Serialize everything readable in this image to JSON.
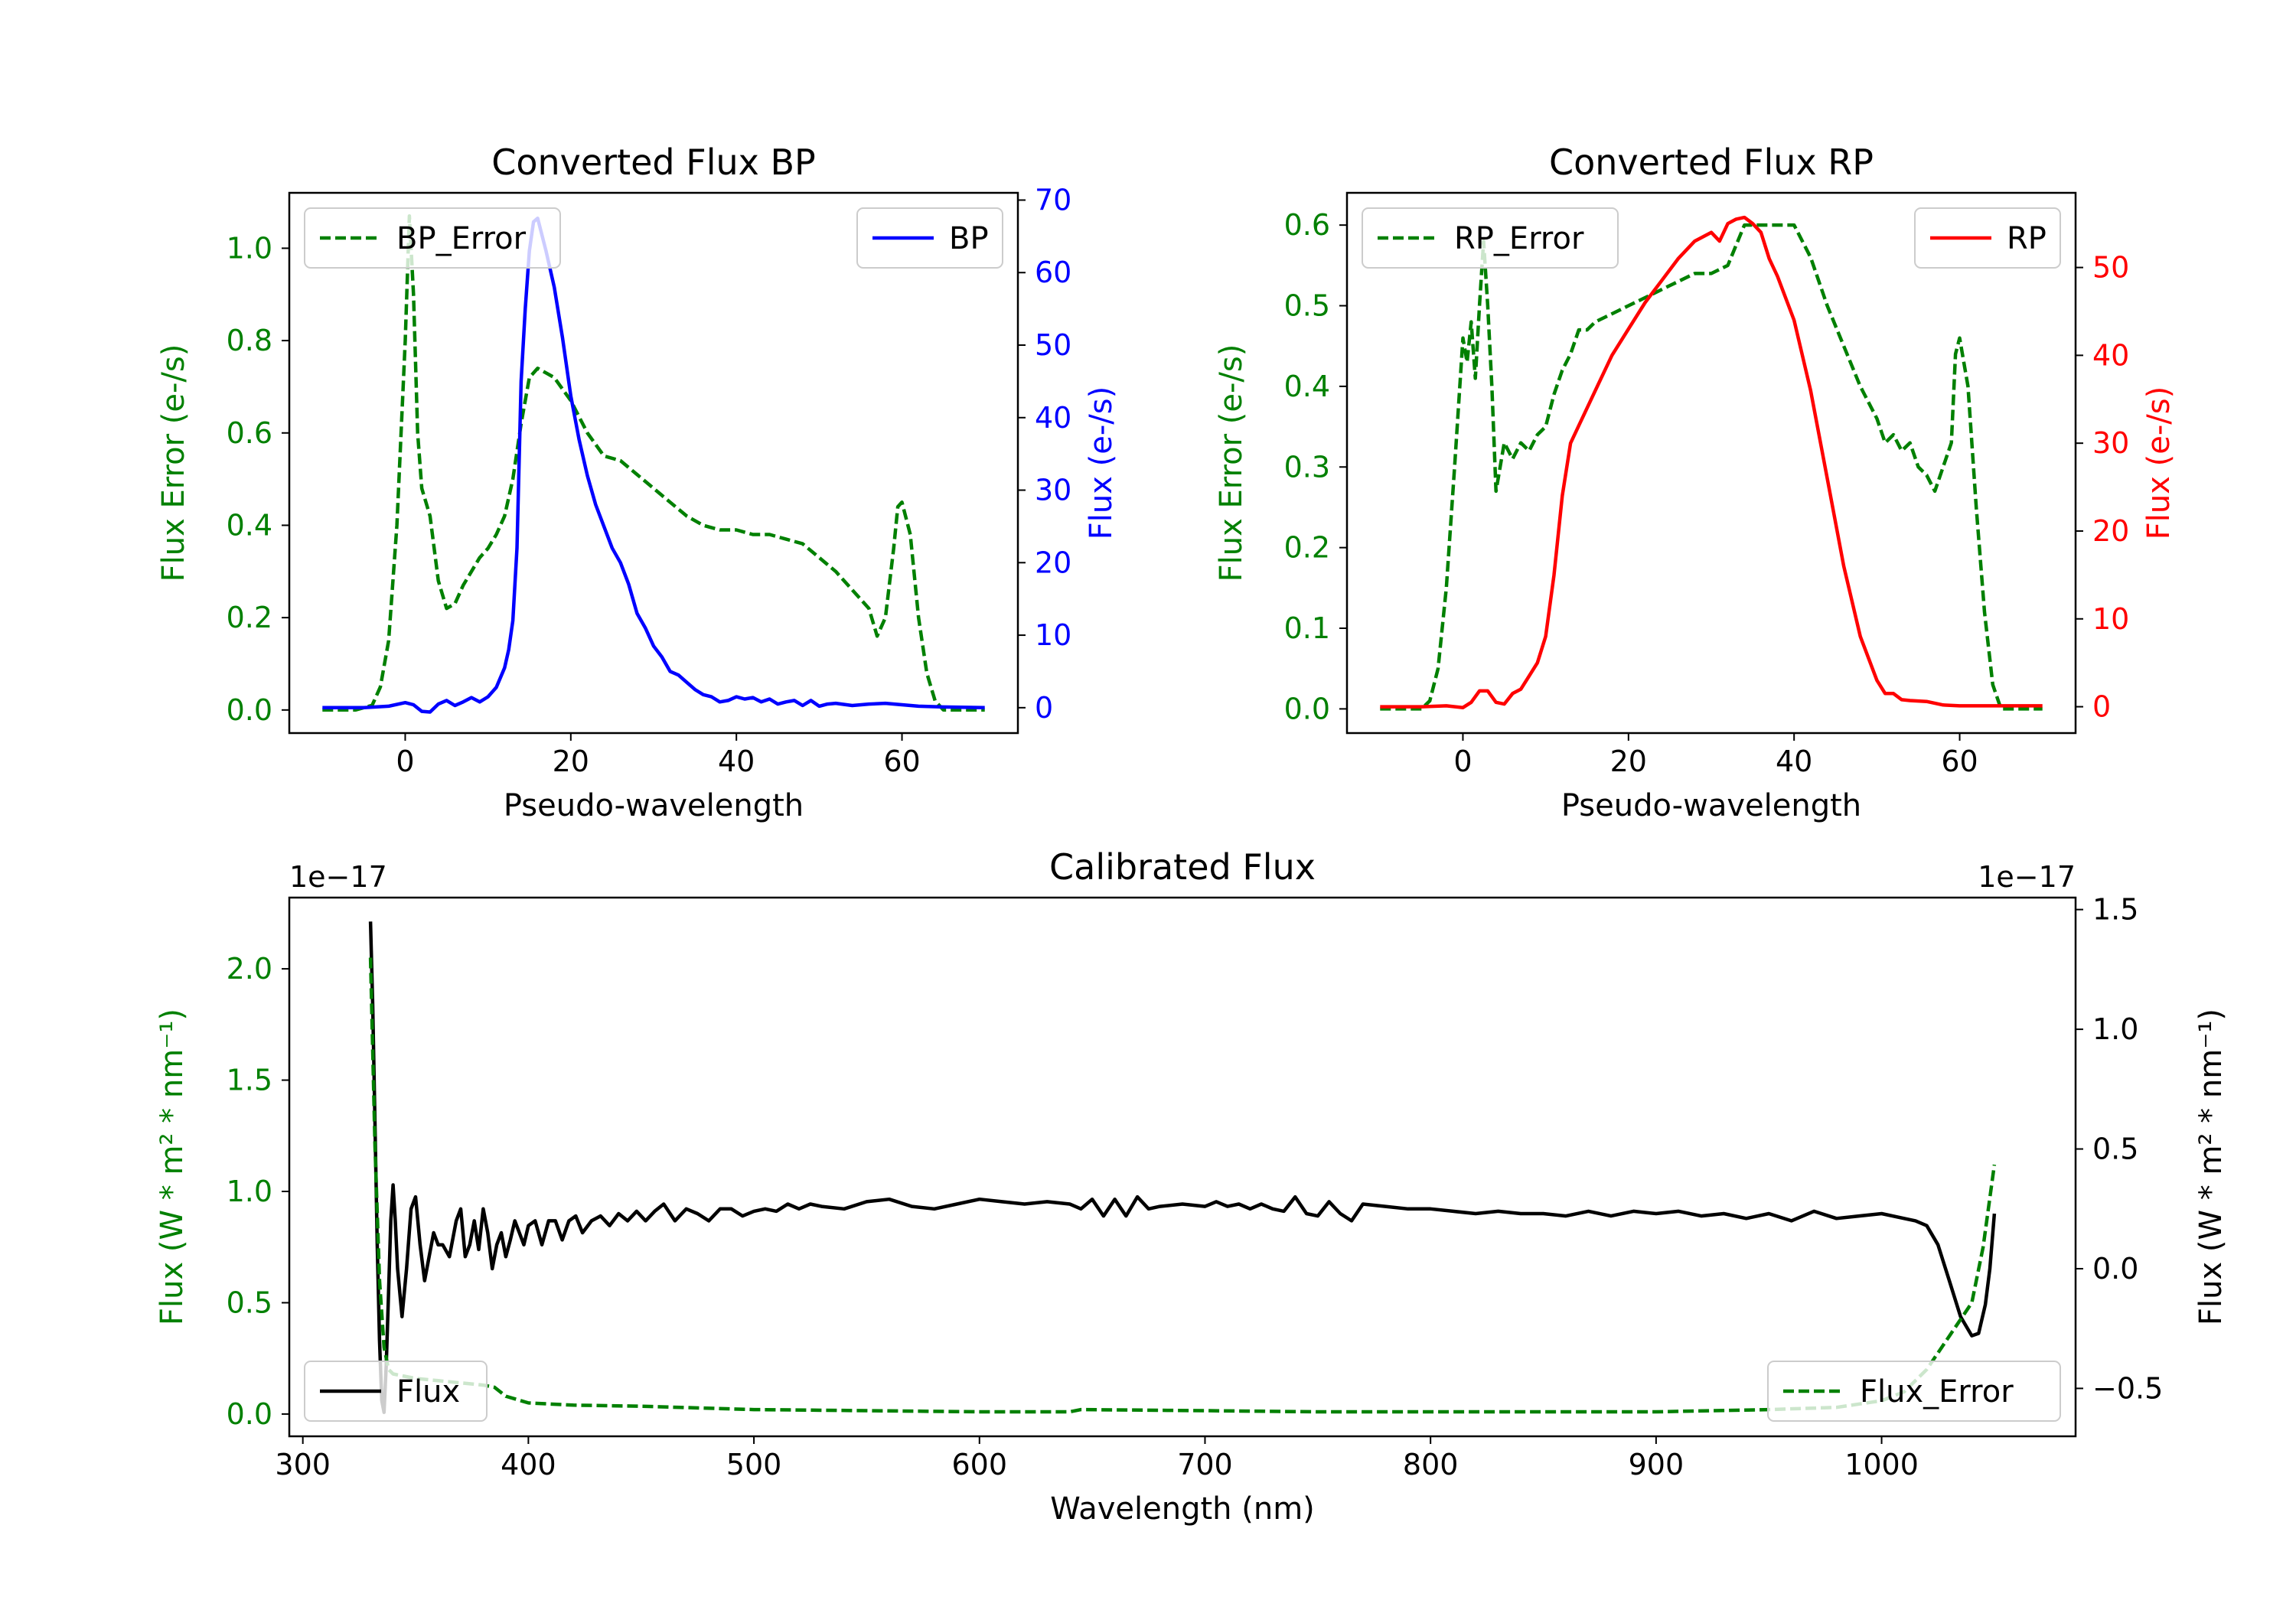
{
  "chart_data": [
    {
      "id": "bp",
      "type": "line",
      "title": "Converted Flux BP",
      "xlabel": "Pseudo-wavelength",
      "xlim": [
        -14,
        74
      ],
      "xticks": [
        0,
        20,
        40,
        60
      ],
      "left_axis": {
        "label": "Flux Error (e-/s)",
        "color": "#008000",
        "ylim": [
          -0.05,
          1.12
        ],
        "ticks": [
          0.0,
          0.2,
          0.4,
          0.6,
          0.8,
          1.0
        ],
        "tick_labels": [
          "0.0",
          "0.2",
          "0.4",
          "0.6",
          "0.8",
          "1.0"
        ]
      },
      "right_axis": {
        "label": "Flux (e-/s)",
        "color": "#0000ff",
        "ylim": [
          -3.5,
          71
        ],
        "ticks": [
          0,
          10,
          20,
          30,
          40,
          50,
          60,
          70
        ],
        "tick_labels": [
          "0",
          "10",
          "20",
          "30",
          "40",
          "50",
          "60",
          "70"
        ]
      },
      "series": [
        {
          "name": "BP_Error",
          "axis": "left",
          "style": "dashed",
          "color": "#008000",
          "x": [
            -10,
            -6,
            -4,
            -3,
            -2,
            -1,
            0,
            0.5,
            1,
            1.5,
            2,
            3,
            4,
            5,
            6,
            7,
            8,
            9,
            10,
            11,
            12,
            13,
            14,
            15,
            16,
            17,
            18,
            20,
            22,
            24,
            26,
            28,
            30,
            32,
            34,
            36,
            38,
            40,
            42,
            44,
            46,
            48,
            50,
            52,
            54,
            55,
            56,
            57,
            58,
            59,
            59.5,
            60,
            61,
            62,
            63,
            64,
            65,
            66,
            70
          ],
          "y": [
            0.0,
            0.0,
            0.01,
            0.05,
            0.15,
            0.4,
            0.8,
            1.07,
            0.9,
            0.6,
            0.48,
            0.42,
            0.28,
            0.22,
            0.23,
            0.27,
            0.3,
            0.33,
            0.35,
            0.38,
            0.42,
            0.5,
            0.62,
            0.72,
            0.74,
            0.73,
            0.72,
            0.67,
            0.6,
            0.55,
            0.54,
            0.51,
            0.48,
            0.45,
            0.42,
            0.4,
            0.39,
            0.39,
            0.38,
            0.38,
            0.37,
            0.36,
            0.33,
            0.3,
            0.26,
            0.24,
            0.22,
            0.16,
            0.2,
            0.35,
            0.44,
            0.45,
            0.38,
            0.2,
            0.08,
            0.02,
            0.0,
            0.0,
            0.0
          ]
        },
        {
          "name": "BP",
          "axis": "right",
          "style": "solid",
          "color": "#0000ff",
          "x": [
            -10,
            -5,
            -2,
            0,
            1,
            2,
            3,
            4,
            5,
            6,
            7,
            8,
            9,
            10,
            11,
            12,
            12.5,
            13,
            13.5,
            14,
            14.5,
            15,
            15.5,
            16,
            17,
            18,
            19,
            20,
            21,
            22,
            23,
            24,
            25,
            26,
            27,
            28,
            29,
            30,
            31,
            32,
            33,
            34,
            35,
            36,
            37,
            38,
            39,
            40,
            41,
            42,
            43,
            44,
            45,
            46,
            47,
            48,
            49,
            50,
            51,
            52,
            54,
            56,
            58,
            60,
            62,
            65,
            70
          ],
          "y": [
            0,
            0,
            0.2,
            0.7,
            0.4,
            -0.5,
            -0.6,
            0.5,
            1.0,
            0.3,
            0.8,
            1.4,
            0.8,
            1.5,
            2.8,
            5.5,
            8,
            12,
            22,
            45,
            55,
            63,
            67,
            67.5,
            63,
            58,
            51,
            43,
            37,
            32,
            28,
            25,
            22,
            20,
            17,
            13,
            11,
            8.5,
            7,
            5,
            4.5,
            3.5,
            2.5,
            1.8,
            1.5,
            0.8,
            1.0,
            1.5,
            1.2,
            1.4,
            0.8,
            1.2,
            0.5,
            0.8,
            1.0,
            0.3,
            1.0,
            0.2,
            0.5,
            0.6,
            0.3,
            0.5,
            0.6,
            0.4,
            0.2,
            0.1,
            0.0
          ]
        }
      ],
      "legends": [
        {
          "entries": [
            "BP_Error"
          ],
          "position": "upper left"
        },
        {
          "entries": [
            "BP"
          ],
          "position": "upper right"
        }
      ]
    },
    {
      "id": "rp",
      "type": "line",
      "title": "Converted Flux RP",
      "xlabel": "Pseudo-wavelength",
      "xlim": [
        -14,
        74
      ],
      "xticks": [
        0,
        20,
        40,
        60
      ],
      "left_axis": {
        "label": "Flux Error (e-/s)",
        "color": "#008000",
        "ylim": [
          -0.03,
          0.64
        ],
        "ticks": [
          0.0,
          0.1,
          0.2,
          0.3,
          0.4,
          0.5,
          0.6
        ],
        "tick_labels": [
          "0.0",
          "0.1",
          "0.2",
          "0.3",
          "0.4",
          "0.5",
          "0.6"
        ]
      },
      "right_axis": {
        "label": "Flux (e-/s)",
        "color": "#ff0000",
        "ylim": [
          -3,
          58.5
        ],
        "ticks": [
          0,
          10,
          20,
          30,
          40,
          50
        ],
        "tick_labels": [
          "0",
          "10",
          "20",
          "30",
          "40",
          "50"
        ]
      },
      "series": [
        {
          "name": "RP_Error",
          "axis": "left",
          "style": "dashed",
          "color": "#008000",
          "x": [
            -10,
            -5,
            -4,
            -3,
            -2,
            -1,
            0,
            0.5,
            1,
            1.5,
            2,
            2.5,
            3,
            3.5,
            4,
            5,
            6,
            7,
            8,
            9,
            10,
            11,
            12,
            13,
            14,
            15,
            16,
            18,
            20,
            22,
            24,
            26,
            28,
            30,
            32,
            34,
            36,
            38,
            40,
            42,
            44,
            46,
            48,
            50,
            51,
            52,
            53,
            54,
            55,
            56,
            57,
            58,
            59,
            59.5,
            60,
            61,
            62,
            63,
            64,
            65,
            70
          ],
          "y": [
            0.0,
            0.0,
            0.01,
            0.05,
            0.15,
            0.3,
            0.46,
            0.43,
            0.48,
            0.41,
            0.5,
            0.58,
            0.5,
            0.4,
            0.27,
            0.33,
            0.31,
            0.33,
            0.32,
            0.34,
            0.35,
            0.39,
            0.42,
            0.44,
            0.47,
            0.47,
            0.48,
            0.49,
            0.5,
            0.51,
            0.52,
            0.53,
            0.54,
            0.54,
            0.55,
            0.6,
            0.6,
            0.6,
            0.6,
            0.56,
            0.5,
            0.45,
            0.4,
            0.36,
            0.33,
            0.34,
            0.32,
            0.33,
            0.3,
            0.29,
            0.27,
            0.3,
            0.33,
            0.44,
            0.46,
            0.4,
            0.25,
            0.12,
            0.03,
            0.0,
            0.0
          ]
        },
        {
          "name": "RP",
          "axis": "right",
          "style": "solid",
          "color": "#ff0000",
          "x": [
            -10,
            -5,
            -2,
            0,
            1,
            2,
            3,
            4,
            5,
            6,
            7,
            8,
            9,
            10,
            11,
            12,
            13,
            14,
            16,
            18,
            20,
            22,
            24,
            26,
            28,
            30,
            31,
            32,
            33,
            34,
            35,
            36,
            37,
            38,
            40,
            42,
            44,
            46,
            48,
            50,
            51,
            52,
            53,
            54,
            56,
            58,
            60,
            65,
            70
          ],
          "y": [
            0,
            0,
            0.1,
            -0.1,
            0.5,
            1.8,
            1.8,
            0.5,
            0.3,
            1.5,
            2.0,
            3.5,
            5,
            8,
            15,
            24,
            30,
            32,
            36,
            40,
            43,
            46,
            48.5,
            51,
            53,
            54,
            53,
            55,
            55.5,
            55.7,
            55,
            54,
            51,
            49,
            44,
            36,
            26,
            16,
            8,
            3,
            1.5,
            1.5,
            0.8,
            0.7,
            0.6,
            0.2,
            0.1,
            0.1,
            0.1
          ]
        }
      ],
      "legends": [
        {
          "entries": [
            "RP_Error"
          ],
          "position": "upper left"
        },
        {
          "entries": [
            "RP"
          ],
          "position": "upper right"
        }
      ]
    },
    {
      "id": "cal",
      "type": "line",
      "title": "Calibrated Flux",
      "xlabel": "Wavelength (nm)",
      "xlim": [
        294,
        1086
      ],
      "xticks": [
        300,
        400,
        500,
        600,
        700,
        800,
        900,
        1000
      ],
      "left_axis": {
        "label": "Flux (W * m² * nm⁻¹)",
        "color": "#008000",
        "offset_text": "1e−17",
        "ylim": [
          -0.1,
          2.32
        ],
        "ticks": [
          0.0,
          0.5,
          1.0,
          1.5,
          2.0
        ],
        "tick_labels": [
          "0.0",
          "0.5",
          "1.0",
          "1.5",
          "2.0"
        ]
      },
      "right_axis": {
        "label": "Flux (W * m² * nm⁻¹)",
        "color": "#000000",
        "offset_text": "1e−17",
        "ylim": [
          -0.7,
          1.55
        ],
        "ticks": [
          -0.5,
          0.0,
          0.5,
          1.0,
          1.5
        ],
        "tick_labels": [
          "−0.5",
          "0.0",
          "0.5",
          "1.0",
          "1.5"
        ]
      },
      "series": [
        {
          "name": "Flux",
          "axis": "right",
          "style": "solid",
          "color": "#000000",
          "x": [
            330,
            331,
            332,
            333,
            334,
            335,
            336,
            337,
            338,
            339,
            340,
            341,
            342,
            344,
            346,
            348,
            350,
            352,
            354,
            356,
            358,
            360,
            362,
            365,
            368,
            370,
            372,
            374,
            376,
            378,
            380,
            382,
            384,
            386,
            388,
            390,
            392,
            394,
            396,
            398,
            400,
            403,
            406,
            409,
            412,
            415,
            418,
            421,
            424,
            428,
            432,
            436,
            440,
            444,
            448,
            452,
            456,
            460,
            465,
            470,
            475,
            480,
            485,
            490,
            495,
            500,
            505,
            510,
            515,
            520,
            525,
            530,
            540,
            550,
            560,
            570,
            580,
            590,
            600,
            610,
            620,
            630,
            640,
            645,
            650,
            655,
            660,
            665,
            670,
            675,
            680,
            690,
            700,
            705,
            710,
            715,
            720,
            725,
            730,
            735,
            740,
            745,
            750,
            755,
            760,
            765,
            770,
            780,
            790,
            800,
            810,
            820,
            830,
            840,
            850,
            860,
            870,
            880,
            890,
            900,
            910,
            920,
            930,
            940,
            950,
            960,
            970,
            980,
            990,
            1000,
            1010,
            1015,
            1020,
            1025,
            1030,
            1035,
            1040,
            1043,
            1046,
            1048,
            1050
          ],
          "y": [
            1.45,
            1.1,
            0.6,
            0.1,
            -0.3,
            -0.55,
            -0.6,
            -0.4,
            -0.1,
            0.2,
            0.35,
            0.2,
            0.0,
            -0.2,
            0.0,
            0.25,
            0.3,
            0.1,
            -0.05,
            0.05,
            0.15,
            0.1,
            0.1,
            0.05,
            0.2,
            0.25,
            0.05,
            0.1,
            0.2,
            0.08,
            0.25,
            0.15,
            0.0,
            0.1,
            0.15,
            0.05,
            0.12,
            0.2,
            0.15,
            0.1,
            0.18,
            0.2,
            0.1,
            0.2,
            0.2,
            0.12,
            0.2,
            0.22,
            0.15,
            0.2,
            0.22,
            0.18,
            0.23,
            0.2,
            0.24,
            0.2,
            0.24,
            0.27,
            0.2,
            0.25,
            0.23,
            0.2,
            0.25,
            0.25,
            0.22,
            0.24,
            0.25,
            0.24,
            0.27,
            0.25,
            0.27,
            0.26,
            0.25,
            0.28,
            0.29,
            0.26,
            0.25,
            0.27,
            0.29,
            0.28,
            0.27,
            0.28,
            0.27,
            0.25,
            0.29,
            0.22,
            0.29,
            0.22,
            0.3,
            0.25,
            0.26,
            0.27,
            0.26,
            0.28,
            0.26,
            0.27,
            0.25,
            0.27,
            0.25,
            0.24,
            0.3,
            0.23,
            0.22,
            0.28,
            0.23,
            0.2,
            0.27,
            0.26,
            0.25,
            0.25,
            0.24,
            0.23,
            0.24,
            0.23,
            0.23,
            0.22,
            0.24,
            0.22,
            0.24,
            0.23,
            0.24,
            0.22,
            0.23,
            0.21,
            0.23,
            0.2,
            0.24,
            0.21,
            0.22,
            0.23,
            0.21,
            0.2,
            0.18,
            0.1,
            -0.05,
            -0.2,
            -0.28,
            -0.27,
            -0.15,
            0.0,
            0.23
          ]
        },
        {
          "name": "Flux_Error",
          "axis": "left",
          "style": "dashed",
          "color": "#008000",
          "x": [
            330,
            332,
            334,
            336,
            338,
            340,
            345,
            350,
            360,
            370,
            380,
            385,
            390,
            400,
            420,
            450,
            500,
            550,
            600,
            640,
            645,
            700,
            750,
            800,
            850,
            900,
            950,
            980,
            1000,
            1010,
            1020,
            1030,
            1040,
            1045,
            1050
          ],
          "y": [
            2.05,
            1.2,
            0.6,
            0.3,
            0.2,
            0.18,
            0.17,
            0.16,
            0.15,
            0.14,
            0.13,
            0.12,
            0.08,
            0.05,
            0.04,
            0.035,
            0.02,
            0.015,
            0.01,
            0.01,
            0.02,
            0.015,
            0.01,
            0.01,
            0.01,
            0.01,
            0.02,
            0.03,
            0.06,
            0.1,
            0.2,
            0.35,
            0.5,
            0.75,
            1.12
          ]
        }
      ],
      "legends": [
        {
          "entries": [
            "Flux"
          ],
          "position": "lower left"
        },
        {
          "entries": [
            "Flux_Error"
          ],
          "position": "lower right"
        }
      ]
    }
  ]
}
